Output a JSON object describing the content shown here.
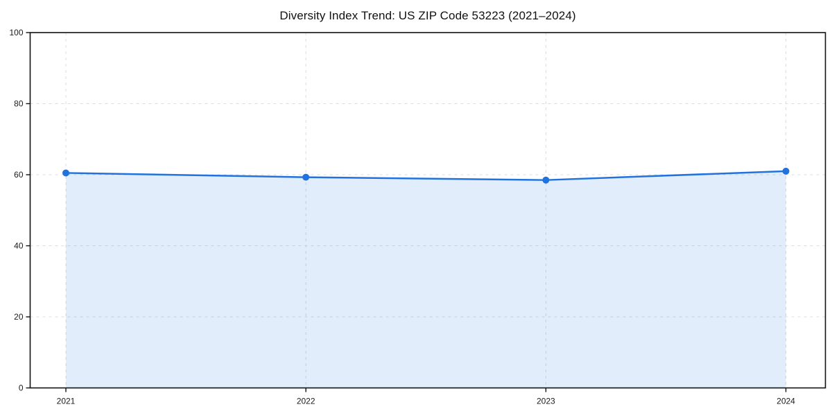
{
  "page": {
    "background": "#ffffff"
  },
  "chart_data": {
    "type": "line",
    "title": "Diversity Index Trend: US ZIP Code 53223 (2021–2024)",
    "categories": [
      "2021",
      "2022",
      "2023",
      "2024"
    ],
    "series": [
      {
        "name": "Diversity Index",
        "values": [
          60.5,
          59.3,
          58.5,
          61.0
        ]
      }
    ],
    "xlabel": "",
    "ylabel": "",
    "ylim": [
      0,
      100
    ],
    "yticks": [
      0,
      20,
      40,
      60,
      80,
      100
    ],
    "grid": "dashed horizontal and vertical",
    "legend": "none",
    "area_fill": true,
    "colors": {
      "line": "#2272dd",
      "marker": "#2272dd",
      "area_fill": "rgba(34,114,221,0.13)",
      "gridline": "#dcdcdc",
      "spine": "#111111",
      "tick_label": "#1a1a1a",
      "title": "#111111"
    }
  }
}
